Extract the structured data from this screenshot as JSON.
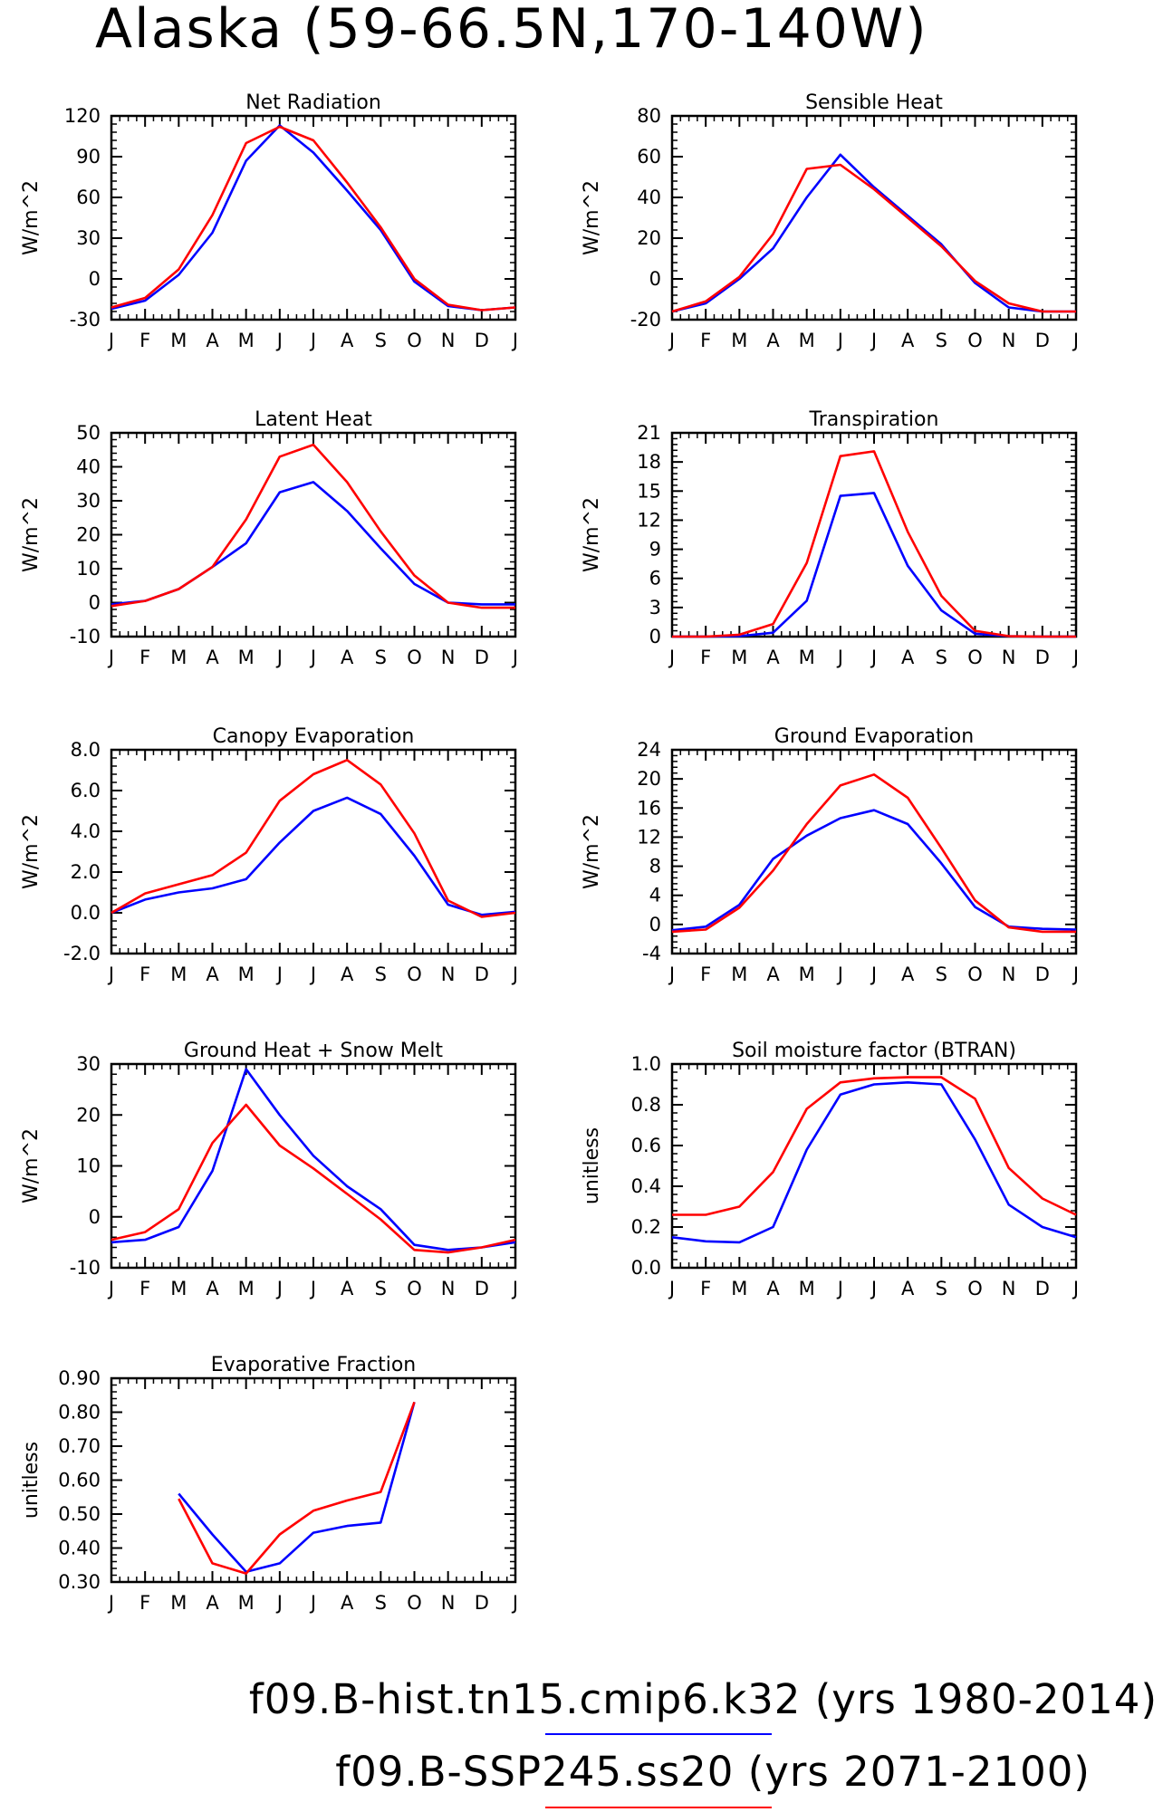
{
  "figure": {
    "title": "Alaska (59-66.5N,170-140W)",
    "months": [
      "J",
      "F",
      "M",
      "A",
      "M",
      "J",
      "J",
      "A",
      "S",
      "O",
      "N",
      "D",
      "J"
    ]
  },
  "legend": [
    {
      "label": "f09.B-hist.tn15.cmip6.k32 (yrs 1980-2014)",
      "color": "#0000ff"
    },
    {
      "label": "f09.B-SSP245.ss20 (yrs 2071-2100)",
      "color": "#ff0000"
    }
  ],
  "chart_data": [
    {
      "type": "line",
      "title": "Net Radiation",
      "ylabel": "W/m^2",
      "ylim": [
        -30,
        120
      ],
      "yticks": [
        -30,
        0,
        30,
        60,
        90,
        120
      ],
      "ytick_labels": [
        "-30",
        "0",
        "30",
        "60",
        "90",
        "120"
      ],
      "x": [
        "J",
        "F",
        "M",
        "A",
        "M",
        "J",
        "J",
        "A",
        "S",
        "O",
        "N",
        "D",
        "J"
      ],
      "series": [
        {
          "color": "#0000ff",
          "values": [
            -22,
            -16,
            3,
            34,
            87,
            113,
            93,
            65,
            36,
            -2,
            -20,
            -23,
            -21
          ]
        },
        {
          "color": "#ff0000",
          "values": [
            -21,
            -14,
            7,
            47,
            100,
            112,
            102,
            71,
            38,
            0,
            -19,
            -23,
            -21
          ]
        }
      ]
    },
    {
      "type": "line",
      "title": "Sensible Heat",
      "ylabel": "W/m^2",
      "ylim": [
        -20,
        80
      ],
      "yticks": [
        -20,
        0,
        20,
        40,
        60,
        80
      ],
      "ytick_labels": [
        "-20",
        "0",
        "20",
        "40",
        "60",
        "80"
      ],
      "x": [
        "J",
        "F",
        "M",
        "A",
        "M",
        "J",
        "J",
        "A",
        "S",
        "O",
        "N",
        "D",
        "J"
      ],
      "series": [
        {
          "color": "#0000ff",
          "values": [
            -16,
            -12,
            0,
            15,
            40,
            61,
            45,
            31,
            17,
            -2,
            -14,
            -16,
            -16
          ]
        },
        {
          "color": "#ff0000",
          "values": [
            -16,
            -11,
            1,
            22,
            54,
            56,
            44,
            30,
            16,
            -1,
            -12,
            -16,
            -16
          ]
        }
      ]
    },
    {
      "type": "line",
      "title": "Latent Heat",
      "ylabel": "W/m^2",
      "ylim": [
        -10,
        50
      ],
      "yticks": [
        -10,
        0,
        10,
        20,
        30,
        40,
        50
      ],
      "ytick_labels": [
        "-10",
        "0",
        "10",
        "20",
        "30",
        "40",
        "50"
      ],
      "x": [
        "J",
        "F",
        "M",
        "A",
        "M",
        "J",
        "J",
        "A",
        "S",
        "O",
        "N",
        "D",
        "J"
      ],
      "series": [
        {
          "color": "#0000ff",
          "values": [
            -0.5,
            0.5,
            4,
            10.5,
            17.5,
            32.5,
            35.5,
            27,
            16,
            5.5,
            0,
            -0.5,
            -0.5
          ]
        },
        {
          "color": "#ff0000",
          "values": [
            -1,
            0.5,
            4,
            10.5,
            24.5,
            43,
            46.5,
            35.5,
            21,
            8,
            0,
            -1.5,
            -1.5
          ]
        }
      ]
    },
    {
      "type": "line",
      "title": "Transpiration",
      "ylabel": "W/m^2",
      "ylim": [
        0,
        21
      ],
      "yticks": [
        0,
        3,
        6,
        9,
        12,
        15,
        18,
        21
      ],
      "ytick_labels": [
        "0",
        "3",
        "6",
        "9",
        "12",
        "15",
        "18",
        "21"
      ],
      "x": [
        "J",
        "F",
        "M",
        "A",
        "M",
        "J",
        "J",
        "A",
        "S",
        "O",
        "N",
        "D",
        "J"
      ],
      "series": [
        {
          "color": "#0000ff",
          "values": [
            0,
            0,
            0.05,
            0.4,
            3.7,
            14.5,
            14.8,
            7.3,
            2.7,
            0.3,
            0.05,
            0,
            0
          ]
        },
        {
          "color": "#ff0000",
          "values": [
            0,
            0,
            0.2,
            1.3,
            7.6,
            18.6,
            19.1,
            10.8,
            4.2,
            0.6,
            0.05,
            0,
            0
          ]
        }
      ]
    },
    {
      "type": "line",
      "title": "Canopy Evaporation",
      "ylabel": "W/m^2",
      "ylim": [
        -2,
        8
      ],
      "yticks": [
        -2,
        0,
        2,
        4,
        6,
        8
      ],
      "ytick_labels": [
        "-2.0",
        "0.0",
        "2.0",
        "4.0",
        "6.0",
        "8.0"
      ],
      "x": [
        "J",
        "F",
        "M",
        "A",
        "M",
        "J",
        "J",
        "A",
        "S",
        "O",
        "N",
        "D",
        "J"
      ],
      "series": [
        {
          "color": "#0000ff",
          "values": [
            0,
            0.65,
            1.0,
            1.2,
            1.65,
            3.45,
            5.0,
            5.65,
            4.85,
            2.8,
            0.4,
            -0.1,
            0.05
          ]
        },
        {
          "color": "#ff0000",
          "values": [
            0,
            0.95,
            1.4,
            1.85,
            2.95,
            5.5,
            6.8,
            7.5,
            6.3,
            3.9,
            0.6,
            -0.2,
            0
          ]
        }
      ]
    },
    {
      "type": "line",
      "title": "Ground Evaporation",
      "ylabel": "W/m^2",
      "ylim": [
        -4,
        24
      ],
      "yticks": [
        -4,
        0,
        4,
        8,
        12,
        16,
        20,
        24
      ],
      "ytick_labels": [
        "-4",
        "0",
        "4",
        "8",
        "12",
        "16",
        "20",
        "24"
      ],
      "x": [
        "J",
        "F",
        "M",
        "A",
        "M",
        "J",
        "J",
        "A",
        "S",
        "O",
        "N",
        "D",
        "J"
      ],
      "series": [
        {
          "color": "#0000ff",
          "values": [
            -0.8,
            -0.3,
            2.7,
            9.0,
            12.2,
            14.6,
            15.7,
            13.8,
            8.4,
            2.4,
            -0.3,
            -0.6,
            -0.7
          ]
        },
        {
          "color": "#ff0000",
          "values": [
            -1.0,
            -0.7,
            2.3,
            7.4,
            13.8,
            19.1,
            20.6,
            17.4,
            10.5,
            3.3,
            -0.4,
            -1.0,
            -1.0
          ]
        }
      ]
    },
    {
      "type": "line",
      "title": "Ground Heat + Snow Melt",
      "ylabel": "W/m^2",
      "ylim": [
        -10,
        30
      ],
      "yticks": [
        -10,
        0,
        10,
        20,
        30
      ],
      "ytick_labels": [
        "-10",
        "0",
        "10",
        "20",
        "30"
      ],
      "x": [
        "J",
        "F",
        "M",
        "A",
        "M",
        "J",
        "J",
        "A",
        "S",
        "O",
        "N",
        "D",
        "J"
      ],
      "series": [
        {
          "color": "#0000ff",
          "values": [
            -5,
            -4.5,
            -2,
            9,
            29,
            20,
            12,
            6,
            1.5,
            -5.5,
            -6.5,
            -6,
            -5
          ]
        },
        {
          "color": "#ff0000",
          "values": [
            -4.5,
            -3,
            1.5,
            14.5,
            22,
            14,
            9.5,
            4.5,
            -0.5,
            -6.5,
            -7,
            -6,
            -4.5
          ]
        }
      ]
    },
    {
      "type": "line",
      "title": "Soil moisture factor (BTRAN)",
      "ylabel": "unitless",
      "ylim": [
        0,
        1
      ],
      "yticks": [
        0,
        0.2,
        0.4,
        0.6,
        0.8,
        1.0
      ],
      "ytick_labels": [
        "0.0",
        "0.2",
        "0.4",
        "0.6",
        "0.8",
        "1.0"
      ],
      "x": [
        "J",
        "F",
        "M",
        "A",
        "M",
        "J",
        "J",
        "A",
        "S",
        "O",
        "N",
        "D",
        "J"
      ],
      "series": [
        {
          "color": "#0000ff",
          "values": [
            0.15,
            0.13,
            0.125,
            0.2,
            0.58,
            0.85,
            0.9,
            0.91,
            0.9,
            0.63,
            0.31,
            0.2,
            0.15
          ]
        },
        {
          "color": "#ff0000",
          "values": [
            0.26,
            0.26,
            0.3,
            0.47,
            0.78,
            0.91,
            0.93,
            0.935,
            0.935,
            0.83,
            0.49,
            0.34,
            0.26
          ]
        }
      ]
    },
    {
      "type": "line",
      "title": "Evaporative Fraction",
      "ylabel": "unitless",
      "ylim": [
        0.3,
        0.9
      ],
      "yticks": [
        0.3,
        0.4,
        0.5,
        0.6,
        0.7,
        0.8,
        0.9
      ],
      "ytick_labels": [
        "0.30",
        "0.40",
        "0.50",
        "0.60",
        "0.70",
        "0.80",
        "0.90"
      ],
      "x": [
        "J",
        "F",
        "M",
        "A",
        "M",
        "J",
        "J",
        "A",
        "S",
        "O",
        "N",
        "D",
        "J"
      ],
      "series": [
        {
          "color": "#0000ff",
          "values": [
            null,
            null,
            0.56,
            0.44,
            0.33,
            0.355,
            0.445,
            0.465,
            0.475,
            0.83,
            null,
            null,
            null
          ]
        },
        {
          "color": "#ff0000",
          "values": [
            null,
            null,
            0.545,
            0.355,
            0.325,
            0.44,
            0.51,
            0.54,
            0.565,
            0.83,
            null,
            null,
            null
          ]
        }
      ]
    }
  ]
}
